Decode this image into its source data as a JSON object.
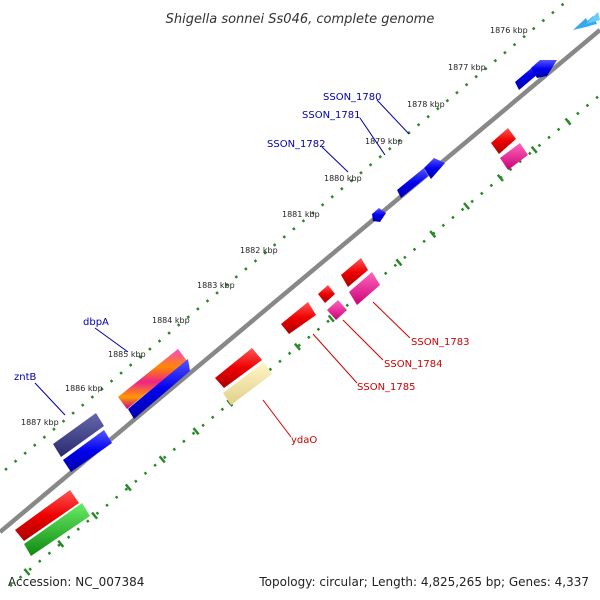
{
  "title": "Shigella sonnei Ss046, complete genome",
  "footer": {
    "accession": "Accession: NC_007384",
    "summary": "Topology: circular; Length: 4,825,265 bp; Genes: 4,337"
  },
  "ticks": [
    "1876 kbp",
    "1877 kbp",
    "1878 kbp",
    "1879 kbp",
    "1880 kbp",
    "1881 kbp",
    "1882 kbp",
    "1883 kbp",
    "1884 kbp",
    "1885 kbp",
    "1886 kbp",
    "1887 kbp"
  ],
  "gene_labels": {
    "sson1780": "SSON_1780",
    "sson1781": "SSON_1781",
    "sson1782": "SSON_1782",
    "dbpa": "dbpA",
    "zntb": "zntB",
    "sson1783": "SSON_1783",
    "sson1784": "SSON_1784",
    "sson1785": "SSON_1785",
    "ydao": "ydaO"
  },
  "colors": {
    "backbone": "#888888",
    "dots": "#2a8a2a",
    "forward_gene": "#0000ee",
    "reverse_gene": "#ee0000",
    "pink_gene": "#ee1188",
    "rrna_like": "#3a3a88",
    "pale_gene": "#eee0a0",
    "green_gene": "#22bb22",
    "label_blue": "#0000aa",
    "label_red": "#cc0000",
    "marker": "#33aaee"
  }
}
